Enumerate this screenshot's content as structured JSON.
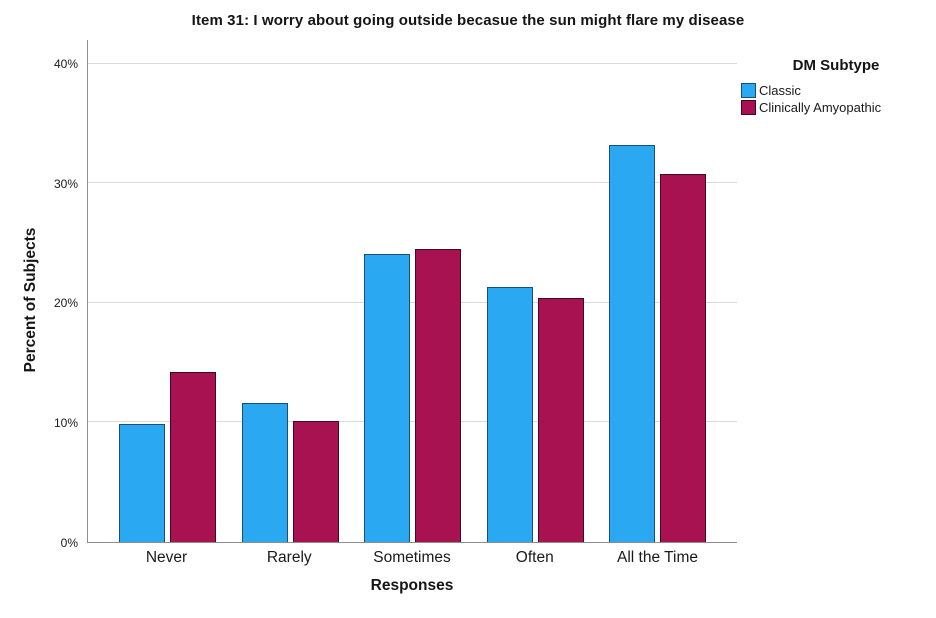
{
  "title": "Item 31: I worry about going outside becasue the sun might flare my disease",
  "chart_data": {
    "type": "bar",
    "title": "Item 31: I worry about going outside becasue the sun might flare my disease",
    "xlabel": "Responses",
    "ylabel": "Percent of Subjects",
    "categories": [
      "Never",
      "Rarely",
      "Sometimes",
      "Often",
      "All the Time"
    ],
    "series": [
      {
        "name": "Classic",
        "color": "#2BA8F2",
        "border_color": "#1B4F79",
        "values": [
          9.9,
          11.6,
          24.1,
          21.3,
          33.2
        ]
      },
      {
        "name": "Clinically Amyopathic",
        "color": "#A81250",
        "border_color": "#3E0A26",
        "values": [
          14.2,
          10.1,
          24.5,
          20.4,
          30.8
        ]
      }
    ],
    "y_tick_labels": [
      "0%",
      "10%",
      "20%",
      "30%",
      "40%"
    ],
    "y_tick_values": [
      0,
      10,
      20,
      30,
      40
    ],
    "ylim": [
      0,
      42
    ],
    "grid": true,
    "legend_title": "DM Subtype",
    "legend_position": "right",
    "colors": {
      "gridline": "#d9d9d9",
      "axis_line": "#8e8e8e",
      "background": "#ffffff"
    }
  },
  "legend": {
    "title": "DM Subtype",
    "entries": [
      "Classic",
      "Clinically Amyopathic"
    ]
  }
}
